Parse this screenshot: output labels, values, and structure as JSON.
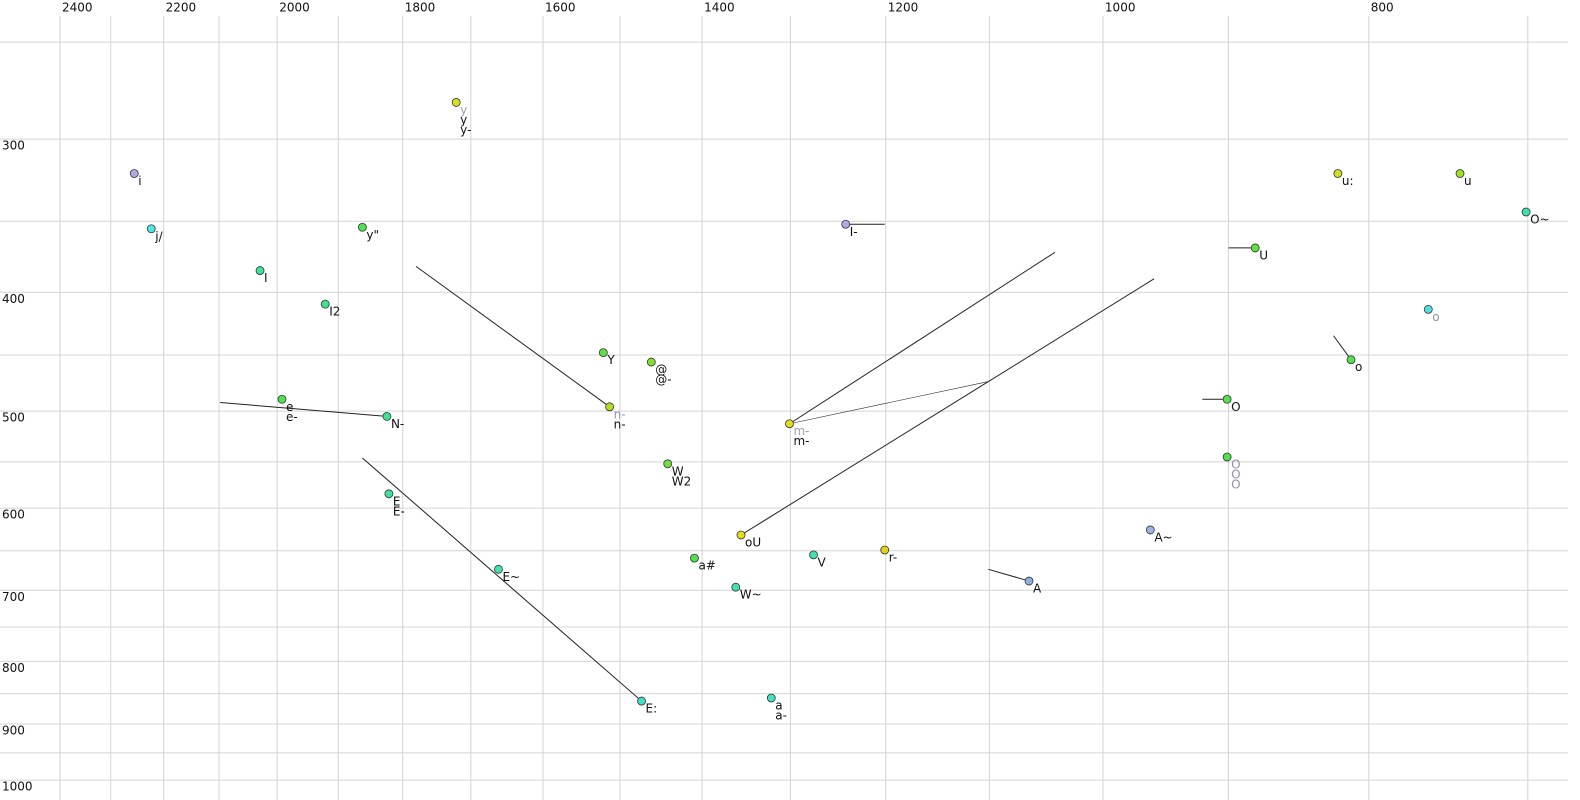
{
  "chart_data": {
    "type": "scatter",
    "log": true,
    "xlim": [
      2524,
      670
    ],
    "ylim": [
      231,
      1038
    ],
    "xticks": [
      2400,
      2200,
      2000,
      1800,
      1600,
      1400,
      1200,
      1000,
      800
    ],
    "x_minor_ticks": [
      2300,
      2100,
      1900,
      1700,
      1500,
      1300,
      1100,
      900,
      700
    ],
    "yticks": [
      300,
      400,
      500,
      600,
      700,
      800,
      900,
      1000
    ],
    "y_minor_ticks": [
      250,
      350,
      450,
      550,
      650,
      750,
      850,
      950
    ],
    "grid": true,
    "grid_color": "#d4d4d4",
    "trajectory_color": "#222222",
    "points": [
      {
        "x": 2255,
        "y": 320,
        "color": "#b4a7e6",
        "labels": [
          "i"
        ]
      },
      {
        "x": 2223,
        "y": 355,
        "color": "#4ee6e6",
        "labels": [
          "j/"
        ]
      },
      {
        "x": 2029,
        "y": 384,
        "color": "#40e0a0",
        "labels": [
          "I"
        ]
      },
      {
        "x": 1921,
        "y": 409,
        "color": "#40e090",
        "labels": [
          "I2"
        ]
      },
      {
        "x": 1862,
        "y": 354,
        "color": "#50e050",
        "labels": [
          "y\""
        ]
      },
      {
        "x": 1721,
        "y": 280,
        "color": "#d4e020",
        "labels": [
          {
            "text": "y",
            "color": "#a0a0b8"
          },
          "y",
          "y-"
        ]
      },
      {
        "x": 1992,
        "y": 489,
        "color": "#50e050",
        "labels": [
          "e",
          "e-"
        ]
      },
      {
        "x": 1824,
        "y": 505,
        "color": "#40e090",
        "labels": [
          "N-"
        ],
        "to": [
          [
            2098,
            492
          ]
        ]
      },
      {
        "x": 1821,
        "y": 584,
        "color": "#40e0a0",
        "labels": [
          "E",
          "E-"
        ]
      },
      {
        "x": 1473,
        "y": 862,
        "color": "#40e0c0",
        "labels": [
          "E:"
        ],
        "to": [
          [
            1862,
            546
          ]
        ]
      },
      {
        "x": 1661,
        "y": 673,
        "color": "#40e0b0",
        "labels": [
          "E~"
        ]
      },
      {
        "x": 1521,
        "y": 448,
        "color": "#60e040",
        "labels": [
          "Y"
        ]
      },
      {
        "x": 1461,
        "y": 456,
        "color": "#80e030",
        "labels": [
          "@",
          "@-"
        ]
      },
      {
        "x": 1513,
        "y": 496,
        "color": "#b0e020",
        "labels": [
          {
            "text": "n-",
            "color": "#9090c0"
          },
          "n-"
        ],
        "to": [
          [
            1780,
            381
          ]
        ]
      },
      {
        "x": 1441,
        "y": 552,
        "color": "#70e040",
        "labels": [
          "W",
          "W2"
        ]
      },
      {
        "x": 1409,
        "y": 659,
        "color": "#50e050",
        "labels": [
          "a#"
        ]
      },
      {
        "x": 1361,
        "y": 696,
        "color": "#40e0b0",
        "labels": [
          "W~"
        ]
      },
      {
        "x": 1355,
        "y": 631,
        "color": "#e0e020",
        "labels": [
          "oU"
        ],
        "to": [
          [
            958,
            390
          ]
        ]
      },
      {
        "x": 1321,
        "y": 857,
        "color": "#40e0c0",
        "labels": [
          "a",
          "a-"
        ]
      },
      {
        "x": 1301,
        "y": 512,
        "color": "#e0e020",
        "labels": [
          {
            "text": "m-",
            "color": "#a0a0b8"
          },
          "m-"
        ],
        "to": [
          [
            1041,
            371
          ],
          [
            1101,
            473
          ]
        ]
      },
      {
        "x": 1275,
        "y": 655,
        "color": "#40e0b0",
        "labels": [
          "V"
        ]
      },
      {
        "x": 1241,
        "y": 352,
        "color": "#b4a7e6",
        "labels": [
          "I-"
        ],
        "to": [
          [
            1201,
            352
          ]
        ]
      },
      {
        "x": 1201,
        "y": 649,
        "color": "#e0d020",
        "labels": [
          "r-"
        ]
      },
      {
        "x": 1064,
        "y": 688,
        "color": "#90b0e0",
        "labels": [
          "A"
        ],
        "to": [
          [
            1101,
            673
          ]
        ]
      },
      {
        "x": 961,
        "y": 625,
        "color": "#a0b0e0",
        "labels": [
          "A~"
        ]
      },
      {
        "x": 901,
        "y": 489,
        "color": "#50e050",
        "labels": [
          "O"
        ],
        "to": [
          [
            920,
            489
          ]
        ]
      },
      {
        "x": 901,
        "y": 545,
        "color": "#50e050",
        "labels": [
          {
            "text": "O",
            "color": "#9090a8"
          },
          {
            "text": "O",
            "color": "#9090a8"
          },
          {
            "text": "O",
            "color": "#9090a8"
          }
        ]
      },
      {
        "x": 880,
        "y": 368,
        "color": "#60e040",
        "labels": [
          "U"
        ],
        "to": [
          [
            900,
            368
          ]
        ]
      },
      {
        "x": 821,
        "y": 320,
        "color": "#d0e020",
        "labels": [
          "u:"
        ]
      },
      {
        "x": 812,
        "y": 454,
        "color": "#50e050",
        "labels": [
          "o"
        ],
        "to": [
          [
            824,
            434
          ]
        ]
      },
      {
        "x": 761,
        "y": 413,
        "color": "#50e0e0",
        "labels": [
          {
            "text": "o",
            "color": "#9090a8"
          }
        ]
      },
      {
        "x": 741,
        "y": 320,
        "color": "#a0e020",
        "labels": [
          "u"
        ]
      },
      {
        "x": 701,
        "y": 344,
        "color": "#40e0b0",
        "labels": [
          "O~"
        ]
      }
    ]
  }
}
